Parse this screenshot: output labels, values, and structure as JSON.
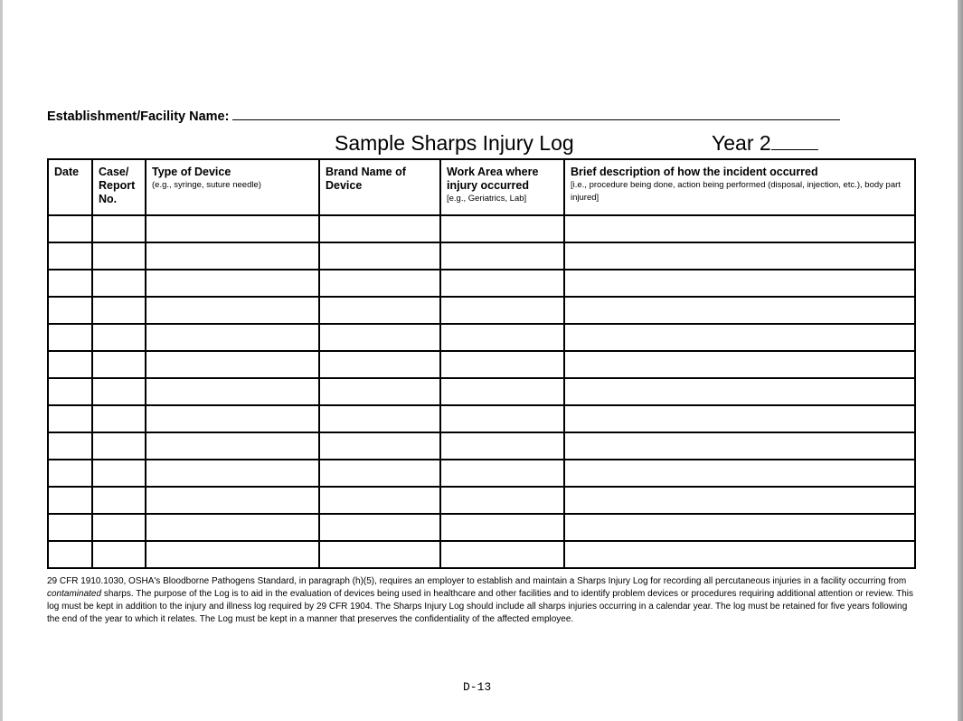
{
  "header": {
    "facility_label": "Establishment/Facility Name:",
    "title": "Sample Sharps Injury Log",
    "year_label": "Year 2"
  },
  "table": {
    "columns": [
      {
        "label": "Date",
        "sub": ""
      },
      {
        "label": "Case/ Report No.",
        "sub": ""
      },
      {
        "label": "Type of Device",
        "sub": "(e.g., syringe, suture needle)"
      },
      {
        "label": "Brand Name of Device",
        "sub": ""
      },
      {
        "label": "Work Area where injury occurred",
        "sub": "[e.g., Geriatrics, Lab]"
      },
      {
        "label": "Brief description of how the incident occurred",
        "sub": "[i.e., procedure being done, action being performed (disposal, injection, etc.), body part injured]"
      }
    ],
    "empty_rows": 13
  },
  "footer": {
    "text_before": "29 CFR 1910.1030, OSHA's Bloodborne Pathogens Standard, in paragraph (h)(5), requires an employer to establish and maintain a Sharps Injury Log for recording all percutaneous injuries in a facility occurring from ",
    "text_italic": "contaminated",
    "text_after": " sharps.  The purpose of the Log is to aid in the evaluation of devices being used in healthcare and other facilities and to identify problem devices or procedures requiring additional attention or review.  This log must be kept in addition to the injury and illness log required by 29 CFR 1904.  The Sharps Injury Log should include all sharps injuries occurring in a calendar year.  The log must be retained for five years following the end of the year to which it relates.  The Log must be kept in a manner that preserves the confidentiality of the affected employee."
  },
  "page_number": "D-13"
}
